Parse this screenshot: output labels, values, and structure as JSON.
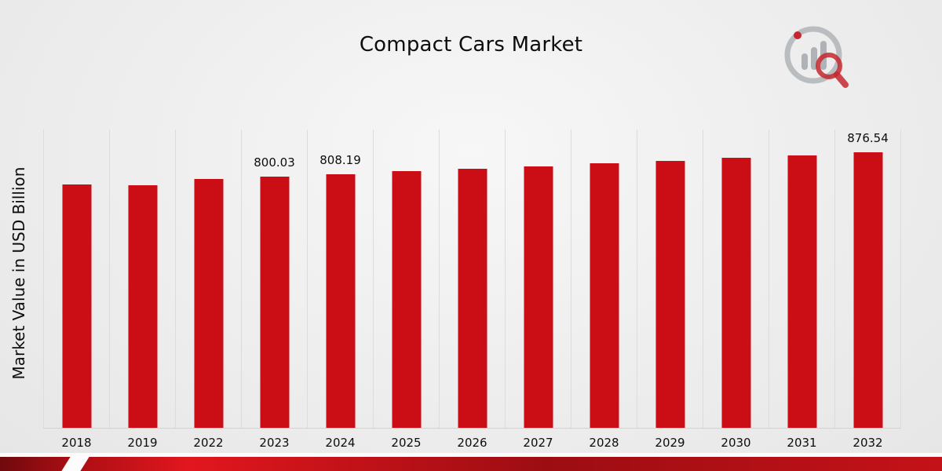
{
  "header": {
    "title": "Compact Cars Market"
  },
  "logo": {
    "name": "market-research-future-logo",
    "ring_color": "#b5b8bc",
    "bar_color": "#a9adb2",
    "accent_color": "#c1121a"
  },
  "chart_data": {
    "type": "bar",
    "title": "Compact Cars Market",
    "xlabel": "",
    "ylabel": "Market Value in USD Billion",
    "categories": [
      "2018",
      "2019",
      "2022",
      "2023",
      "2024",
      "2025",
      "2026",
      "2027",
      "2028",
      "2029",
      "2030",
      "2031",
      "2032"
    ],
    "values": [
      775.5,
      772.3,
      792.1,
      800.03,
      808.19,
      816.4,
      824.7,
      833.1,
      841.6,
      850.2,
      858.8,
      867.5,
      876.54
    ],
    "data_labels": [
      "",
      "",
      "",
      "800.03",
      "808.19",
      "",
      "",
      "",
      "",
      "",
      "",
      "",
      "876.54"
    ],
    "ylim": [
      0,
      950
    ],
    "bar_color": "#cb0e15",
    "grid": "vertical-light",
    "legend": "none"
  },
  "footer": {
    "ribbon_colors": [
      "#70090d",
      "#e2161e",
      "#c41218"
    ]
  }
}
